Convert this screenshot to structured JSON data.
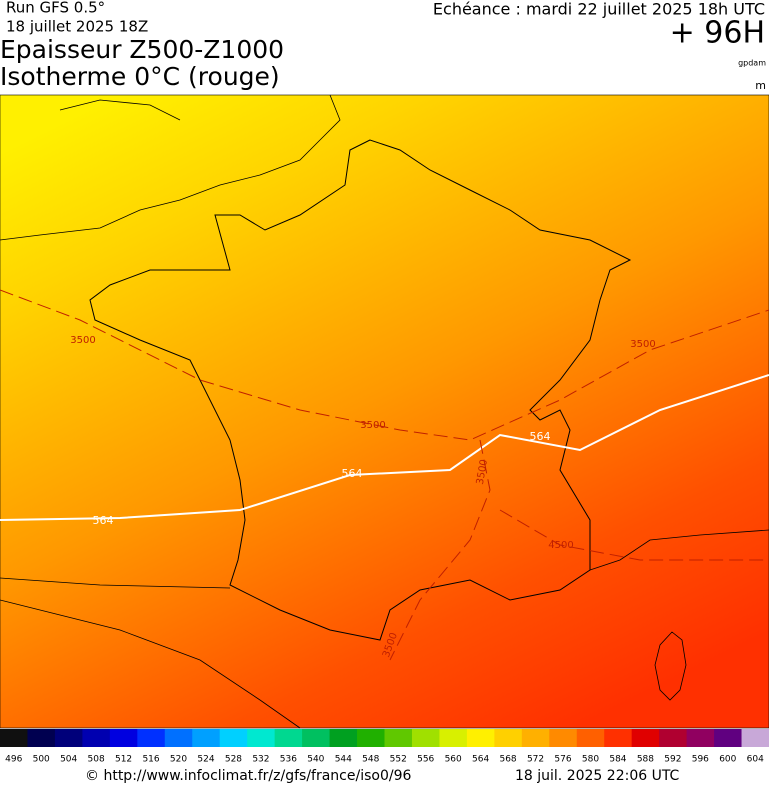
{
  "header": {
    "run": "Run GFS 0.5°",
    "run_date": "18 juillet 2025 18Z",
    "valid": "Echéance : mardi 22 juillet 2025 18h UTC",
    "lead": "+ 96H",
    "title_1": "Epaisseur Z500-Z1000",
    "title_2": "Isotherme 0°C (rouge)",
    "unit_1": "gpdam",
    "unit_2": "m"
  },
  "map": {
    "thickness_labels": [
      "564",
      "564",
      "564"
    ],
    "isotherm_labels": [
      "3500",
      "3500",
      "3500",
      "3500",
      "4500",
      "3500"
    ]
  },
  "legend": {
    "labels": [
      "496",
      "500",
      "504",
      "508",
      "512",
      "516",
      "520",
      "524",
      "528",
      "532",
      "536",
      "540",
      "544",
      "548",
      "552",
      "556",
      "560",
      "564",
      "568",
      "572",
      "576",
      "580",
      "584",
      "588",
      "592",
      "596",
      "600",
      "604"
    ],
    "colors": [
      "#101010",
      "#000050",
      "#00007a",
      "#0000b0",
      "#0000e0",
      "#0030ff",
      "#0070ff",
      "#00a0ff",
      "#00d0ff",
      "#00e8d0",
      "#00d890",
      "#00c060",
      "#00a020",
      "#20b000",
      "#60c800",
      "#a0e000",
      "#d8f000",
      "#fff000",
      "#ffd000",
      "#ffb000",
      "#ff8a00",
      "#ff6000",
      "#ff3000",
      "#e00000",
      "#b00030",
      "#900060",
      "#600080",
      "#c8a8d8"
    ]
  },
  "footer": {
    "url": "© http://www.infoclimat.fr/z/gfs/france/iso0/96",
    "timestamp": "18 juil. 2025 22:06 UTC"
  }
}
